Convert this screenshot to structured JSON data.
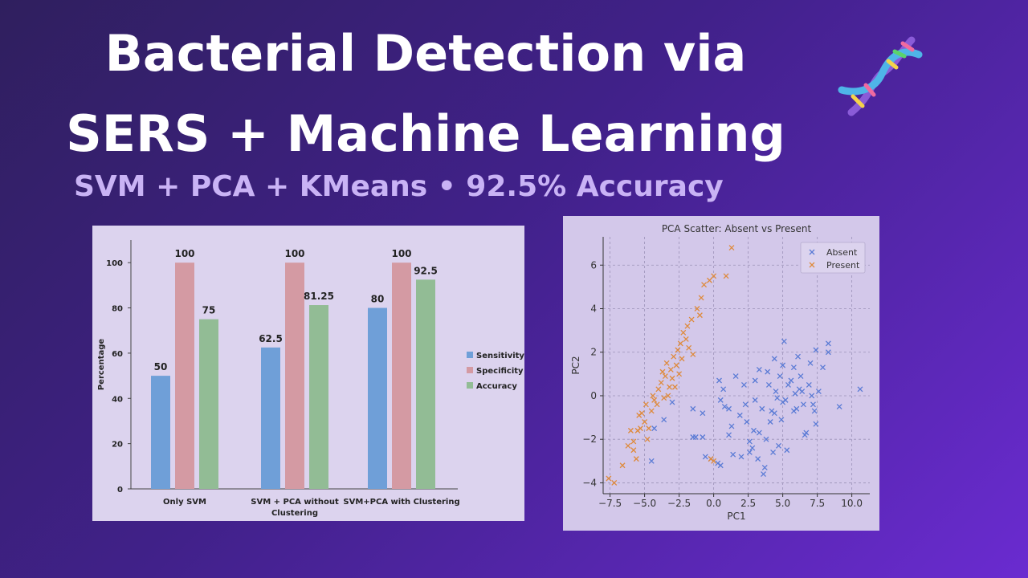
{
  "header": {
    "title_line1": "Bacterial Detection via",
    "title_line2": "SERS + Machine Learning",
    "subtitle": "SVM + PCA + KMeans • 92.5% Accuracy",
    "icon": "dna-icon"
  },
  "chart_data": [
    {
      "type": "bar",
      "categories": [
        "Only SVM",
        "SVM + PCA without Clustering",
        "SVM+PCA with Clustering"
      ],
      "category_lines": [
        [
          "Only SVM"
        ],
        [
          "SVM + PCA without",
          "Clustering"
        ],
        [
          "SVM+PCA with Clustering"
        ]
      ],
      "series": [
        {
          "name": "Sensitivity",
          "values": [
            50,
            62.5,
            80
          ],
          "color": "#6f9fd8"
        },
        {
          "name": "Specificity",
          "values": [
            100,
            100,
            100
          ],
          "color": "#d49aa3"
        },
        {
          "name": "Accuracy",
          "values": [
            75,
            81.25,
            92.5
          ],
          "color": "#92bc95"
        }
      ],
      "value_labels": [
        [
          "50",
          "100",
          "75"
        ],
        [
          "62.5",
          "100",
          "81.25"
        ],
        [
          "80",
          "100",
          "92.5"
        ]
      ],
      "ylabel": "Percentage",
      "yticks": [
        "0",
        "20",
        "40",
        "60",
        "80",
        "100"
      ],
      "ylim": [
        0,
        110
      ],
      "legend": "right"
    },
    {
      "type": "scatter",
      "title": "PCA Scatter: Absent vs Present",
      "xlabel": "PC1",
      "ylabel": "PC2",
      "xlim": [
        -8,
        11.3
      ],
      "ylim": [
        -4.5,
        7.3
      ],
      "xticks": [
        "−7.5",
        "−5.0",
        "−2.5",
        "0.0",
        "2.5",
        "5.0",
        "7.5",
        "10.0"
      ],
      "xtick_values": [
        -7.5,
        -5,
        -2.5,
        0,
        2.5,
        5,
        7.5,
        10
      ],
      "yticks": [
        "−4",
        "−2",
        "0",
        "2",
        "4",
        "6"
      ],
      "ytick_values": [
        -4,
        -2,
        0,
        2,
        4,
        6
      ],
      "grid": true,
      "legend": "top-right",
      "series": [
        {
          "name": "Absent",
          "color": "#5b7bd5",
          "marker": "x",
          "points": [
            [
              -4.5,
              -3.0
            ],
            [
              -4.3,
              -1.5
            ],
            [
              -3.6,
              -1.1
            ],
            [
              -3.0,
              -0.3
            ],
            [
              -1.5,
              -0.6
            ],
            [
              -1.5,
              -1.9
            ],
            [
              -1.3,
              -1.9
            ],
            [
              -0.8,
              -0.8
            ],
            [
              -0.8,
              -1.9
            ],
            [
              -0.6,
              -2.8
            ],
            [
              -0.2,
              -2.9
            ],
            [
              0.3,
              -3.1
            ],
            [
              0.5,
              -3.2
            ],
            [
              0.4,
              0.7
            ],
            [
              0.7,
              0.3
            ],
            [
              0.5,
              -0.2
            ],
            [
              0.8,
              -0.5
            ],
            [
              1.1,
              -0.6
            ],
            [
              1.1,
              -1.8
            ],
            [
              1.3,
              -1.4
            ],
            [
              1.4,
              -2.7
            ],
            [
              1.6,
              0.9
            ],
            [
              1.9,
              -0.9
            ],
            [
              2.0,
              -2.8
            ],
            [
              2.2,
              0.5
            ],
            [
              2.3,
              -0.4
            ],
            [
              2.4,
              -1.2
            ],
            [
              2.6,
              -2.1
            ],
            [
              2.6,
              -2.6
            ],
            [
              2.8,
              -2.4
            ],
            [
              3.0,
              0.7
            ],
            [
              3.0,
              -0.2
            ],
            [
              3.3,
              1.2
            ],
            [
              3.3,
              -1.7
            ],
            [
              3.2,
              -2.9
            ],
            [
              3.6,
              -3.6
            ],
            [
              3.7,
              -3.3
            ],
            [
              3.8,
              -2.0
            ],
            [
              3.9,
              1.1
            ],
            [
              4.0,
              0.5
            ],
            [
              4.1,
              -1.2
            ],
            [
              4.2,
              -0.7
            ],
            [
              4.3,
              -2.6
            ],
            [
              4.4,
              1.7
            ],
            [
              4.5,
              0.2
            ],
            [
              4.6,
              -0.1
            ],
            [
              4.7,
              -2.3
            ],
            [
              4.8,
              0.9
            ],
            [
              4.9,
              -1.1
            ],
            [
              5.0,
              1.4
            ],
            [
              5.0,
              -0.3
            ],
            [
              5.1,
              2.5
            ],
            [
              5.2,
              -0.2
            ],
            [
              5.3,
              -2.5
            ],
            [
              5.4,
              0.5
            ],
            [
              5.6,
              0.7
            ],
            [
              5.8,
              1.3
            ],
            [
              5.9,
              0.1
            ],
            [
              6.0,
              -0.6
            ],
            [
              6.1,
              1.8
            ],
            [
              6.3,
              0.9
            ],
            [
              6.4,
              0.2
            ],
            [
              6.5,
              -0.4
            ],
            [
              6.6,
              -1.8
            ],
            [
              6.7,
              -1.7
            ],
            [
              6.9,
              0.5
            ],
            [
              7.0,
              1.5
            ],
            [
              7.1,
              0.0
            ],
            [
              7.2,
              -0.4
            ],
            [
              7.3,
              -0.7
            ],
            [
              7.4,
              -1.3
            ],
            [
              7.4,
              2.1
            ],
            [
              7.6,
              0.2
            ],
            [
              7.9,
              1.3
            ],
            [
              8.3,
              2.4
            ],
            [
              8.3,
              2.0
            ],
            [
              9.1,
              -0.5
            ],
            [
              10.6,
              0.3
            ],
            [
              5.8,
              -0.7
            ],
            [
              6.2,
              0.3
            ],
            [
              3.5,
              -0.6
            ],
            [
              4.4,
              -0.8
            ],
            [
              2.9,
              -1.6
            ]
          ]
        },
        {
          "name": "Present",
          "color": "#de8a3c",
          "marker": "x",
          "points": [
            [
              -7.6,
              -3.8
            ],
            [
              -7.2,
              -4.0
            ],
            [
              -6.6,
              -3.2
            ],
            [
              -6.2,
              -2.3
            ],
            [
              -5.8,
              -2.5
            ],
            [
              -5.6,
              -2.9
            ],
            [
              -5.8,
              -2.1
            ],
            [
              -5.5,
              -1.6
            ],
            [
              -5.3,
              -1.5
            ],
            [
              -5.0,
              -1.2
            ],
            [
              -4.8,
              -2.0
            ],
            [
              -5.2,
              -0.8
            ],
            [
              -4.9,
              -0.4
            ],
            [
              -4.7,
              -1.5
            ],
            [
              -4.5,
              -0.7
            ],
            [
              -4.3,
              -0.2
            ],
            [
              -4.1,
              -0.4
            ],
            [
              -4.0,
              0.3
            ],
            [
              -3.8,
              0.6
            ],
            [
              -3.6,
              -0.1
            ],
            [
              -3.5,
              0.9
            ],
            [
              -3.4,
              1.5
            ],
            [
              -3.2,
              0.4
            ],
            [
              -3.1,
              1.2
            ],
            [
              -3.0,
              0.8
            ],
            [
              -2.9,
              1.8
            ],
            [
              -2.7,
              1.4
            ],
            [
              -2.6,
              2.1
            ],
            [
              -2.5,
              1.0
            ],
            [
              -2.4,
              2.4
            ],
            [
              -2.3,
              1.7
            ],
            [
              -2.2,
              2.9
            ],
            [
              -2.0,
              2.6
            ],
            [
              -1.9,
              3.2
            ],
            [
              -1.8,
              2.2
            ],
            [
              -1.6,
              3.5
            ],
            [
              -1.5,
              1.9
            ],
            [
              -1.2,
              4.0
            ],
            [
              -1.0,
              3.7
            ],
            [
              -0.9,
              4.5
            ],
            [
              -0.7,
              5.1
            ],
            [
              -0.3,
              5.3
            ],
            [
              0.0,
              5.5
            ],
            [
              0.9,
              5.5
            ],
            [
              1.3,
              6.8
            ],
            [
              -3.7,
              1.1
            ],
            [
              -3.3,
              0.0
            ],
            [
              -2.8,
              0.4
            ],
            [
              -4.4,
              0.0
            ],
            [
              0.0,
              -3.0
            ],
            [
              -0.2,
              -2.9
            ],
            [
              -6.0,
              -1.6
            ],
            [
              -5.4,
              -0.9
            ]
          ]
        }
      ]
    }
  ]
}
